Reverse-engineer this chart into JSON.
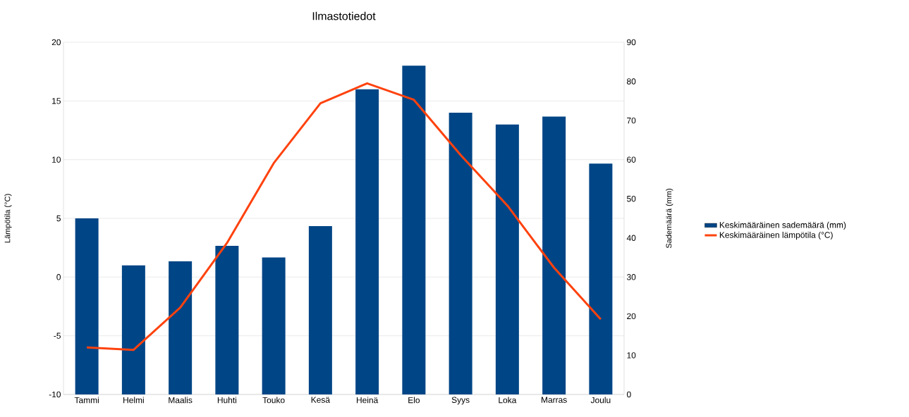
{
  "chart_data": {
    "type": "bar",
    "title": "Ilmastotiedot",
    "ylabel": "Lämpötila (°C)",
    "y2label": "Sademäärä (mm)",
    "categories": [
      "Tammi",
      "Helmi",
      "Maalis",
      "Huhti",
      "Touko",
      "Kesä",
      "Heinä",
      "Elo",
      "Syys",
      "Loka",
      "Marras",
      "Joulu"
    ],
    "series": [
      {
        "name": "Keskimääräinen sademäärä (mm)",
        "axis": "y2",
        "color": "#004586",
        "values": [
          45,
          33,
          34,
          38,
          35,
          43,
          78,
          84,
          72,
          69,
          71,
          59
        ]
      },
      {
        "name": "Keskimääräinen lämpötila (°C)",
        "type": "line",
        "axis": "y",
        "color": "#ff420e",
        "values": [
          -6.0,
          -6.2,
          -2.6,
          2.9,
          9.7,
          14.8,
          16.5,
          15.1,
          10.4,
          6.1,
          0.8,
          -3.6
        ]
      }
    ],
    "ylim": [
      -10,
      20
    ],
    "yticks": [
      -10,
      -5,
      0,
      5,
      10,
      15,
      20
    ],
    "y2lim": [
      0,
      90
    ],
    "y2ticks": [
      0,
      10,
      20,
      30,
      40,
      50,
      60,
      70,
      80,
      90
    ],
    "grid": "y",
    "legend": "right"
  }
}
